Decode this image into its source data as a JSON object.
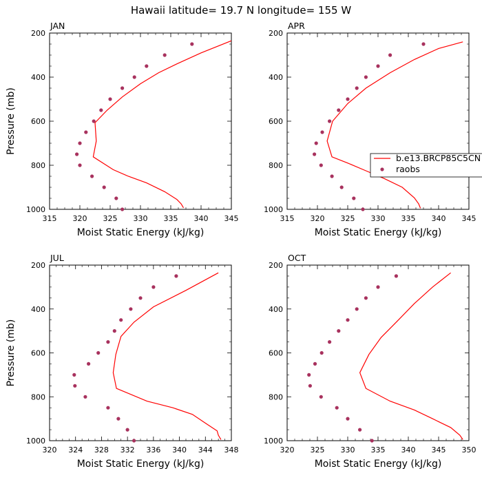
{
  "title": "Hawaii  latitude= 19.7 N longitude= 155 W",
  "colors": {
    "line": "#ff0000",
    "dots": "#a8325e",
    "axis": "#000000"
  },
  "legend": {
    "placement": "right of APR panel, overlapping",
    "line_label": "b.e13.BRCP85C5CN",
    "dot_label": "raobs"
  },
  "chart_data": [
    {
      "type": "line",
      "panel_label": "JAN",
      "xlabel": "Moist Static Energy (kJ/kg)",
      "ylabel": "Pressure (mb)",
      "xlim": [
        315,
        345
      ],
      "ylim": [
        1000,
        200
      ],
      "xticks": [
        315,
        320,
        325,
        330,
        335,
        340,
        345
      ],
      "yticks": [
        200,
        400,
        600,
        800,
        1000
      ],
      "series": [
        {
          "name": "b.e13.BRCP85C5CN",
          "style": "line",
          "points": [
            [
              345,
              235
            ],
            [
              340,
              290
            ],
            [
              336,
              340
            ],
            [
              333,
              380
            ],
            [
              330,
              430
            ],
            [
              327,
              490
            ],
            [
              324.5,
              550
            ],
            [
              322.5,
              607
            ],
            [
              322.7,
              690
            ],
            [
              322.2,
              762
            ],
            [
              325.5,
              820
            ],
            [
              328,
              850
            ],
            [
              331,
              880
            ],
            [
              334,
              920
            ],
            [
              336,
              955
            ],
            [
              336.7,
              975
            ],
            [
              337.1,
              993
            ]
          ]
        },
        {
          "name": "raobs",
          "style": "markers",
          "points": [
            [
              338.5,
              250
            ],
            [
              334,
              300
            ],
            [
              331,
              350
            ],
            [
              329,
              400
            ],
            [
              327,
              450
            ],
            [
              325,
              500
            ],
            [
              323.5,
              550
            ],
            [
              322.3,
              600
            ],
            [
              321,
              650
            ],
            [
              320,
              700
            ],
            [
              319.5,
              750
            ],
            [
              320,
              800
            ],
            [
              322,
              850
            ],
            [
              324,
              900
            ],
            [
              326,
              950
            ],
            [
              327,
              1000
            ]
          ]
        }
      ]
    },
    {
      "type": "line",
      "panel_label": "APR",
      "xlabel": "Moist Static Energy (kJ/kg)",
      "ylabel": "",
      "xlim": [
        315,
        345
      ],
      "ylim": [
        1000,
        200
      ],
      "xticks": [
        315,
        320,
        325,
        330,
        335,
        340,
        345
      ],
      "yticks": [
        200,
        400,
        600,
        800,
        1000
      ],
      "series": [
        {
          "name": "b.e13.BRCP85C5CN",
          "style": "line",
          "points": [
            [
              344,
              240
            ],
            [
              340,
              270
            ],
            [
              336,
              320
            ],
            [
              332,
              380
            ],
            [
              328,
              450
            ],
            [
              325,
              520
            ],
            [
              322.5,
              600
            ],
            [
              321.6,
              690
            ],
            [
              322.4,
              762
            ],
            [
              325,
              790
            ],
            [
              328,
              825
            ],
            [
              331,
              860
            ],
            [
              334,
              900
            ],
            [
              336,
              948
            ],
            [
              336.7,
              975
            ],
            [
              337,
              995
            ]
          ]
        },
        {
          "name": "raobs",
          "style": "markers",
          "points": [
            [
              337.5,
              250
            ],
            [
              332,
              300
            ],
            [
              330,
              350
            ],
            [
              328,
              400
            ],
            [
              326.5,
              450
            ],
            [
              325,
              500
            ],
            [
              323.5,
              550
            ],
            [
              322,
              600
            ],
            [
              320.8,
              650
            ],
            [
              319.8,
              700
            ],
            [
              319.5,
              750
            ],
            [
              320.6,
              800
            ],
            [
              322.4,
              850
            ],
            [
              324,
              900
            ],
            [
              326,
              950
            ],
            [
              327.5,
              1000
            ]
          ]
        }
      ]
    },
    {
      "type": "line",
      "panel_label": "JUL",
      "xlabel": "Moist Static Energy (kJ/kg)",
      "ylabel": "Pressure (mb)",
      "xlim": [
        320,
        348
      ],
      "ylim": [
        1000,
        200
      ],
      "xticks": [
        320,
        324,
        328,
        332,
        336,
        340,
        344,
        348
      ],
      "yticks": [
        200,
        400,
        600,
        800,
        1000
      ],
      "series": [
        {
          "name": "b.e13.BRCP85C5CN",
          "style": "line",
          "points": [
            [
              346,
              235
            ],
            [
              341,
              315
            ],
            [
              336,
              390
            ],
            [
              333,
              460
            ],
            [
              331,
              525
            ],
            [
              330.2,
              607
            ],
            [
              329.8,
              690
            ],
            [
              330.3,
              762
            ],
            [
              335,
              820
            ],
            [
              339,
              850
            ],
            [
              342,
              880
            ],
            [
              344,
              920
            ],
            [
              345.8,
              955
            ],
            [
              346,
              975
            ],
            [
              346.4,
              995
            ]
          ]
        },
        {
          "name": "raobs",
          "style": "markers",
          "points": [
            [
              339.5,
              250
            ],
            [
              336,
              300
            ],
            [
              334,
              350
            ],
            [
              332.5,
              400
            ],
            [
              331,
              450
            ],
            [
              330,
              500
            ],
            [
              329,
              550
            ],
            [
              327.5,
              600
            ],
            [
              326,
              650
            ],
            [
              323.8,
              700
            ],
            [
              323.9,
              750
            ],
            [
              325.5,
              800
            ],
            [
              329,
              850
            ],
            [
              330.6,
              900
            ],
            [
              332,
              950
            ],
            [
              333,
              1000
            ]
          ]
        }
      ]
    },
    {
      "type": "line",
      "panel_label": "OCT",
      "xlabel": "Moist Static Energy (kJ/kg)",
      "ylabel": "",
      "xlim": [
        320,
        350
      ],
      "ylim": [
        1000,
        200
      ],
      "xticks": [
        320,
        325,
        330,
        335,
        340,
        345,
        350
      ],
      "yticks": [
        200,
        400,
        600,
        800,
        1000
      ],
      "series": [
        {
          "name": "b.e13.BRCP85C5CN",
          "style": "line",
          "points": [
            [
              347,
              235
            ],
            [
              344,
              300
            ],
            [
              341,
              375
            ],
            [
              338,
              460
            ],
            [
              335.5,
              530
            ],
            [
              333.5,
              607
            ],
            [
              332,
              690
            ],
            [
              333,
              762
            ],
            [
              337,
              820
            ],
            [
              341,
              860
            ],
            [
              344,
              900
            ],
            [
              347,
              940
            ],
            [
              348.5,
              975
            ],
            [
              349,
              995
            ]
          ]
        },
        {
          "name": "raobs",
          "style": "markers",
          "points": [
            [
              338,
              250
            ],
            [
              335,
              300
            ],
            [
              333,
              350
            ],
            [
              331.5,
              400
            ],
            [
              330,
              450
            ],
            [
              328.5,
              500
            ],
            [
              327,
              550
            ],
            [
              325.7,
              600
            ],
            [
              324.6,
              650
            ],
            [
              323.6,
              700
            ],
            [
              323.8,
              750
            ],
            [
              325.6,
              800
            ],
            [
              328.2,
              850
            ],
            [
              330,
              900
            ],
            [
              332,
              950
            ],
            [
              334,
              1000
            ]
          ]
        }
      ]
    }
  ]
}
